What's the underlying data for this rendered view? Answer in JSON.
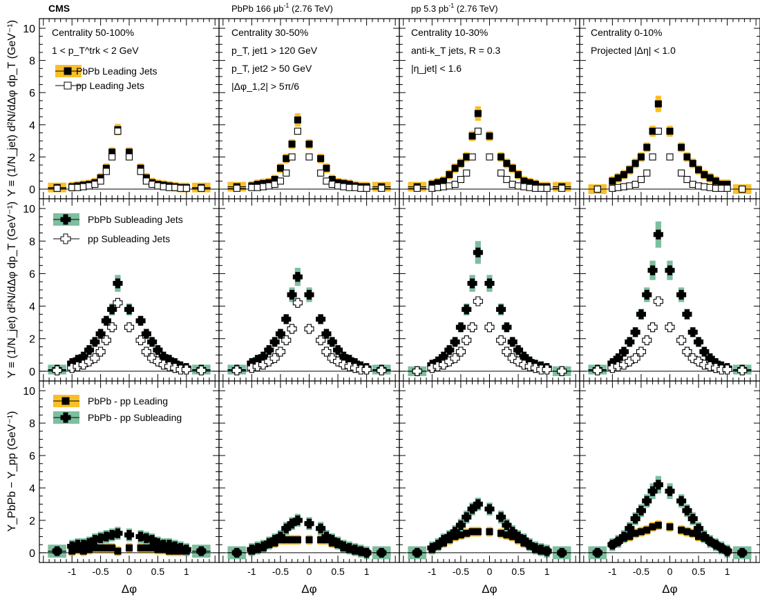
{
  "header": {
    "experiment": "CMS",
    "pbpb_lumi": "PbPb 166 μb",
    "pbpb_lumi_sup": "-1",
    "pbpb_energy": " (2.76 TeV)",
    "pp_lumi": "pp 5.3 pb",
    "pp_lumi_sup": "-1",
    "pp_energy": " (2.76 TeV)"
  },
  "axis": {
    "xlabel": "Δφ",
    "x_ticks": [
      "-1",
      "-0.5",
      "0",
      "0.5",
      "1"
    ],
    "y_ticks": [
      "0",
      "2",
      "4",
      "6",
      "8",
      "10"
    ],
    "row_ylabels": [
      "Y ≡ (1/N_jet) d²N/dΔφ dp_T (GeV⁻¹)",
      "Y ≡ (1/N_jet) d²N/dΔφ dp_T (GeV⁻¹)",
      "Y_PbPb − Y_pp (GeV⁻¹)"
    ]
  },
  "annotations": {
    "col0": [
      "Centrality 50-100%",
      "1 < p_T^trk < 2 GeV"
    ],
    "col1": [
      "Centrality 30-50%",
      "p_T, jet1 > 120 GeV",
      "p_T, jet2 > 50 GeV",
      "|Δφ_1,2| > 5π/6"
    ],
    "col2": [
      "Centrality 10-30%",
      "anti-k_T jets, R = 0.3",
      "|η_jet| < 1.6"
    ],
    "col3": [
      "Centrality 0-10%",
      "Projected |Δη| < 1.0"
    ]
  },
  "legends": {
    "row0": [
      "PbPb Leading Jets",
      "pp Leading Jets"
    ],
    "row1": [
      "PbPb Subleading Jets",
      "pp Subleading Jets"
    ],
    "row2": [
      "PbPb - pp Leading",
      "PbPb - pp Subleading"
    ]
  },
  "colors": {
    "leading_band": "#f9bf2a",
    "subleading_band": "#7dbf9f",
    "marker": "#000000"
  },
  "chart_data": {
    "type": "scatter",
    "x": [
      -1.26,
      -1.0,
      -0.9,
      -0.8,
      -0.7,
      -0.6,
      -0.5,
      -0.4,
      -0.3,
      -0.2,
      0.0,
      0.2,
      0.3,
      0.4,
      0.5,
      0.6,
      0.7,
      0.8,
      0.9,
      1.0,
      1.26
    ],
    "xlim": [
      -1.57,
      1.57
    ],
    "ylim": [
      -0.6,
      10.6
    ],
    "columns": [
      "Centrality 50-100%",
      "Centrality 30-50%",
      "Centrality 10-30%",
      "Centrality 0-10%"
    ],
    "panels": [
      [
        {
          "series": [
            {
              "name": "PbPb Leading Jets",
              "values": [
                0.1,
                0.15,
                0.2,
                0.25,
                0.3,
                0.4,
                0.7,
                1.3,
                2.3,
                3.7,
                2.3,
                1.3,
                0.7,
                0.4,
                0.3,
                0.25,
                0.2,
                0.15,
                0.1,
                0.1,
                0.1
              ]
            },
            {
              "name": "pp Leading Jets",
              "values": [
                0.05,
                0.1,
                0.1,
                0.15,
                0.2,
                0.3,
                0.5,
                1.1,
                2.0,
                3.6,
                2.0,
                1.1,
                0.5,
                0.3,
                0.2,
                0.15,
                0.1,
                0.1,
                0.05,
                0.05,
                0.05
              ]
            }
          ]
        },
        {
          "series": [
            {
              "name": "PbPb Leading Jets",
              "values": [
                0.15,
                0.2,
                0.3,
                0.35,
                0.4,
                0.6,
                1.3,
                1.9,
                2.8,
                4.3,
                2.8,
                1.9,
                1.3,
                0.6,
                0.4,
                0.35,
                0.3,
                0.2,
                0.15,
                0.15,
                0.15
              ]
            },
            {
              "name": "pp Leading Jets",
              "values": [
                0.05,
                0.1,
                0.1,
                0.15,
                0.2,
                0.3,
                0.5,
                1.0,
                2.0,
                3.6,
                2.0,
                1.0,
                0.5,
                0.3,
                0.2,
                0.15,
                0.1,
                0.1,
                0.05,
                0.05,
                0.05
              ]
            }
          ]
        },
        {
          "series": [
            {
              "name": "PbPb Leading Jets",
              "values": [
                0.15,
                0.3,
                0.4,
                0.5,
                0.9,
                1.3,
                1.6,
                2.0,
                3.3,
                4.7,
                3.3,
                2.0,
                1.6,
                1.3,
                0.9,
                0.5,
                0.4,
                0.3,
                0.15,
                0.15,
                0.15
              ]
            },
            {
              "name": "pp Leading Jets",
              "values": [
                0.05,
                0.05,
                0.1,
                0.15,
                0.2,
                0.3,
                0.6,
                1.0,
                2.0,
                3.6,
                2.0,
                1.0,
                0.6,
                0.3,
                0.2,
                0.15,
                0.1,
                0.05,
                0.05,
                0.05,
                0.05
              ]
            }
          ]
        },
        {
          "series": [
            {
              "name": "PbPb Leading Jets",
              "values": [
                0.0,
                0.5,
                0.7,
                0.9,
                1.2,
                1.6,
                2.0,
                2.6,
                3.6,
                5.3,
                3.6,
                2.6,
                2.0,
                1.6,
                1.2,
                0.9,
                0.7,
                0.5,
                0.3,
                0.3,
                0.0
              ]
            },
            {
              "name": "pp Leading Jets",
              "values": [
                0.0,
                0.05,
                0.1,
                0.15,
                0.2,
                0.3,
                0.6,
                1.0,
                2.0,
                3.6,
                2.0,
                1.0,
                0.6,
                0.3,
                0.2,
                0.15,
                0.1,
                0.05,
                0.05,
                0.05,
                0.0
              ]
            }
          ]
        }
      ],
      [
        {
          "series": [
            {
              "name": "PbPb Subleading Jets",
              "values": [
                0.1,
                0.5,
                0.7,
                0.9,
                1.3,
                1.8,
                2.3,
                3.1,
                3.8,
                5.4,
                3.8,
                3.1,
                2.3,
                1.8,
                1.3,
                0.9,
                0.7,
                0.5,
                0.3,
                0.2,
                0.1
              ]
            },
            {
              "name": "pp Subleading Jets",
              "values": [
                0.05,
                0.2,
                0.3,
                0.4,
                0.6,
                0.8,
                1.2,
                1.9,
                2.7,
                4.2,
                2.7,
                1.9,
                1.2,
                0.8,
                0.6,
                0.4,
                0.3,
                0.2,
                0.1,
                0.1,
                0.05
              ]
            }
          ]
        },
        {
          "series": [
            {
              "name": "PbPb Subleading Jets",
              "values": [
                0.1,
                0.5,
                0.7,
                0.9,
                1.3,
                1.8,
                2.3,
                3.2,
                4.7,
                5.8,
                4.7,
                3.2,
                2.3,
                1.8,
                1.3,
                0.9,
                0.7,
                0.5,
                0.3,
                0.2,
                0.1
              ]
            },
            {
              "name": "pp Subleading Jets",
              "values": [
                0.05,
                0.2,
                0.3,
                0.4,
                0.6,
                0.8,
                1.2,
                1.9,
                2.6,
                4.2,
                2.6,
                1.9,
                1.2,
                0.8,
                0.6,
                0.4,
                0.3,
                0.2,
                0.1,
                0.1,
                0.05
              ]
            }
          ]
        },
        {
          "series": [
            {
              "name": "PbPb Subleading Jets",
              "values": [
                0.0,
                0.4,
                0.6,
                0.9,
                1.3,
                1.8,
                2.7,
                3.8,
                5.4,
                7.3,
                5.4,
                3.8,
                2.7,
                1.8,
                1.3,
                0.9,
                0.6,
                0.4,
                0.3,
                0.2,
                0.0
              ]
            },
            {
              "name": "pp Subleading Jets",
              "values": [
                0.0,
                0.2,
                0.3,
                0.4,
                0.6,
                0.8,
                1.2,
                1.9,
                2.7,
                4.3,
                2.7,
                1.9,
                1.2,
                0.8,
                0.6,
                0.4,
                0.3,
                0.2,
                0.1,
                0.1,
                0.0
              ]
            }
          ]
        },
        {
          "series": [
            {
              "name": "PbPb Subleading Jets",
              "values": [
                0.1,
                0.5,
                0.8,
                1.2,
                1.8,
                2.4,
                3.5,
                4.7,
                6.2,
                8.4,
                6.2,
                4.7,
                3.5,
                2.4,
                1.8,
                1.2,
                0.8,
                0.5,
                0.3,
                0.2,
                0.1
              ]
            },
            {
              "name": "pp Subleading Jets",
              "values": [
                0.05,
                0.2,
                0.3,
                0.4,
                0.6,
                0.8,
                1.2,
                1.9,
                2.7,
                4.3,
                2.7,
                1.9,
                1.2,
                0.8,
                0.6,
                0.4,
                0.3,
                0.2,
                0.1,
                0.1,
                0.05
              ]
            }
          ]
        }
      ],
      [
        {
          "series": [
            {
              "name": "PbPb - pp Leading",
              "values": [
                0.1,
                0.1,
                0.2,
                0.1,
                0.2,
                0.3,
                0.3,
                0.3,
                0.3,
                0.1,
                0.3,
                0.3,
                0.3,
                0.3,
                0.2,
                0.2,
                0.1,
                0.1,
                0.1,
                0.1,
                0.1
              ]
            },
            {
              "name": "PbPb - pp Subleading",
              "values": [
                0.1,
                0.4,
                0.5,
                0.5,
                0.6,
                0.8,
                0.9,
                1.0,
                1.1,
                1.2,
                1.1,
                1.0,
                0.9,
                0.8,
                0.6,
                0.5,
                0.5,
                0.4,
                0.3,
                0.2,
                0.1
              ]
            }
          ]
        },
        {
          "series": [
            {
              "name": "PbPb - pp Leading",
              "values": [
                0.0,
                0.1,
                0.2,
                0.3,
                0.5,
                0.6,
                0.8,
                0.8,
                0.8,
                0.8,
                0.8,
                0.8,
                0.8,
                0.6,
                0.5,
                0.3,
                0.2,
                0.1,
                0.1,
                0.0,
                0.0
              ]
            },
            {
              "name": "PbPb - pp Subleading",
              "values": [
                0.0,
                0.2,
                0.3,
                0.4,
                0.6,
                0.8,
                1.0,
                1.5,
                1.8,
                2.0,
                1.8,
                1.5,
                1.0,
                0.8,
                0.6,
                0.4,
                0.3,
                0.2,
                0.1,
                0.0,
                0.0
              ]
            }
          ]
        },
        {
          "series": [
            {
              "name": "PbPb - pp Leading",
              "values": [
                0.0,
                0.2,
                0.4,
                0.6,
                0.8,
                1.0,
                1.1,
                1.2,
                1.3,
                1.3,
                1.3,
                1.2,
                1.1,
                1.0,
                0.8,
                0.6,
                0.4,
                0.2,
                0.1,
                0.1,
                0.0
              ]
            },
            {
              "name": "PbPb - pp Subleading",
              "values": [
                0.0,
                0.3,
                0.5,
                0.8,
                1.0,
                1.3,
                1.7,
                2.2,
                2.7,
                3.0,
                2.7,
                2.2,
                1.7,
                1.3,
                1.0,
                0.8,
                0.5,
                0.3,
                0.2,
                0.1,
                0.0
              ]
            }
          ]
        },
        {
          "series": [
            {
              "name": "PbPb - pp Leading",
              "values": [
                0.0,
                0.5,
                0.7,
                0.9,
                1.0,
                1.2,
                1.3,
                1.4,
                1.6,
                1.7,
                1.6,
                1.4,
                1.3,
                1.2,
                1.0,
                0.9,
                0.7,
                0.5,
                0.3,
                0.1,
                0.0
              ]
            },
            {
              "name": "PbPb - pp Subleading",
              "values": [
                0.0,
                0.5,
                0.7,
                1.0,
                1.5,
                2.1,
                2.6,
                3.2,
                3.8,
                4.2,
                3.8,
                3.2,
                2.6,
                2.1,
                1.5,
                1.0,
                0.7,
                0.5,
                0.3,
                0.1,
                0.0
              ]
            }
          ]
        }
      ]
    ]
  }
}
